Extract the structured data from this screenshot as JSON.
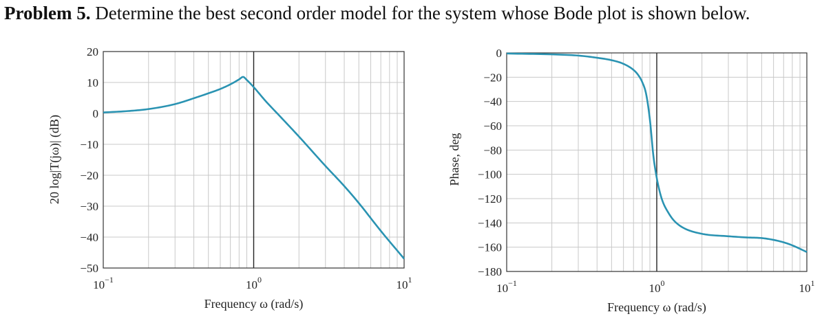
{
  "problem": {
    "number": "Problem 5.",
    "text": " Determine the best second order model for the system whose Bode plot is shown below."
  },
  "colors": {
    "curve": "#2a93b2",
    "grid": "#c8c8c8",
    "frame": "#333333",
    "unity": "#222222"
  },
  "chart_data": [
    {
      "type": "line",
      "title": "",
      "xlabel": "Frequency ω (rad/s)",
      "ylabel": "20 log|T(jω)| (dB)",
      "xscale": "log",
      "xlim": [
        0.1,
        10
      ],
      "ylim": [
        -50,
        20
      ],
      "xticks": [
        {
          "base": "10",
          "exp": "−1"
        },
        {
          "base": "10",
          "exp": "0"
        },
        {
          "base": "10",
          "exp": "1"
        }
      ],
      "yticks": [
        "20",
        "10",
        "0",
        "−10",
        "−20",
        "−30",
        "−40",
        "−50"
      ],
      "ytick_values": [
        20,
        10,
        0,
        -10,
        -20,
        -30,
        -40,
        -50
      ],
      "grid": true,
      "series": [
        {
          "x": [
            0.1,
            0.15,
            0.2,
            0.3,
            0.4,
            0.5,
            0.6,
            0.7,
            0.8,
            0.85,
            0.9,
            1.0,
            1.2,
            1.5,
            2,
            3,
            4,
            5,
            7,
            10
          ],
          "y": [
            0.3,
            0.8,
            1.4,
            3.0,
            4.9,
            6.5,
            7.9,
            9.4,
            11.0,
            11.8,
            10.8,
            8.5,
            4.0,
            -1.0,
            -7.5,
            -17.0,
            -23.5,
            -29.0,
            -38.0,
            -47.0
          ]
        }
      ]
    },
    {
      "type": "line",
      "title": "",
      "xlabel": "Frequency ω (rad/s)",
      "ylabel": "Phase, deg",
      "xscale": "log",
      "xlim": [
        0.1,
        10
      ],
      "ylim": [
        -180,
        0
      ],
      "xticks": [
        {
          "base": "10",
          "exp": "−1"
        },
        {
          "base": "10",
          "exp": "0"
        },
        {
          "base": "10",
          "exp": "1"
        }
      ],
      "yticks": [
        "0",
        "−20",
        "−40",
        "−60",
        "−80",
        "−100",
        "−120",
        "−140",
        "−160",
        "−180"
      ],
      "ytick_values": [
        0,
        -20,
        -40,
        -60,
        -80,
        -100,
        -120,
        -140,
        -160,
        -180
      ],
      "grid": true,
      "series": [
        {
          "x": [
            0.1,
            0.2,
            0.3,
            0.4,
            0.5,
            0.6,
            0.7,
            0.75,
            0.8,
            0.85,
            0.9,
            0.95,
            1.0,
            1.05,
            1.1,
            1.2,
            1.3,
            1.5,
            2,
            3,
            4,
            5,
            6,
            7,
            8,
            10
          ],
          "y": [
            -0.5,
            -1.2,
            -2.2,
            -4.0,
            -6.0,
            -9.0,
            -14.0,
            -18.0,
            -24.0,
            -34.0,
            -55.0,
            -85.0,
            -103.0,
            -115.0,
            -123.0,
            -132.0,
            -138.0,
            -144.0,
            -149.0,
            -151.0,
            -152.0,
            -152.5,
            -154.0,
            -156.0,
            -158.5,
            -164.0
          ]
        }
      ]
    }
  ]
}
